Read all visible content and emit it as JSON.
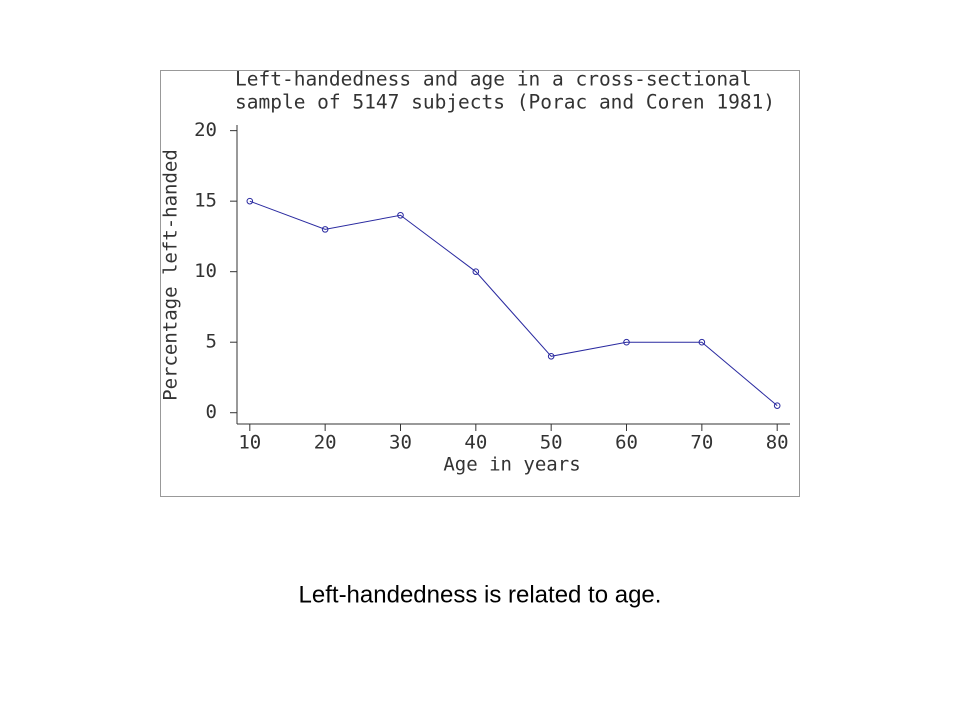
{
  "chart_data": {
    "type": "line",
    "title": [
      "Left-handedness and age in a cross-sectional",
      "sample of 5147 subjects (Porac and Coren 1981)"
    ],
    "x_label": "Age in years",
    "y_label": "Percentage left-handed",
    "x": [
      10,
      20,
      30,
      40,
      50,
      60,
      70,
      80
    ],
    "series": [
      {
        "name": "Percentage left-handed",
        "color": "#2a2aa0",
        "values": [
          15,
          13,
          14,
          10,
          4,
          5,
          5,
          0.5
        ]
      }
    ],
    "xlim": [
      8.3,
      81.7
    ],
    "xticks": [
      10,
      20,
      30,
      40,
      50,
      60,
      70,
      80
    ],
    "ylim": [
      -0.8,
      20.4
    ],
    "yticks": [
      0,
      5,
      10,
      15,
      20
    ],
    "grid": false
  },
  "caption": "Left-handedness is related to age."
}
